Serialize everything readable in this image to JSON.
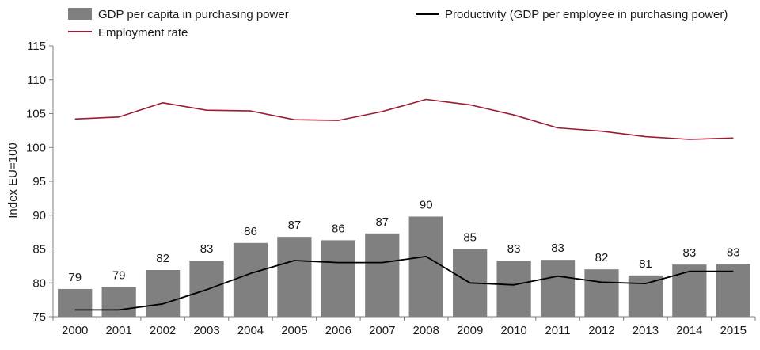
{
  "chart_data": {
    "type": "bar",
    "title": "",
    "xlabel": "",
    "ylabel": "Index EU=100",
    "ylim": [
      75,
      115
    ],
    "yticks": [
      75,
      80,
      85,
      90,
      95,
      100,
      105,
      110,
      115
    ],
    "grid": false,
    "legend_position": "top",
    "categories": [
      "2000",
      "2001",
      "2002",
      "2003",
      "2004",
      "2005",
      "2006",
      "2007",
      "2008",
      "2009",
      "2010",
      "2011",
      "2012",
      "2013",
      "2014",
      "2015"
    ],
    "series": [
      {
        "name": "GDP per capita in purchasing power",
        "type": "bar",
        "color": "#808080",
        "values": [
          79.1,
          79.4,
          81.9,
          83.3,
          85.9,
          86.8,
          86.3,
          87.3,
          89.8,
          85.0,
          83.3,
          83.4,
          82.0,
          81.1,
          82.7,
          82.8
        ],
        "labels": [
          "79",
          "79",
          "82",
          "83",
          "86",
          "87",
          "86",
          "87",
          "90",
          "85",
          "83",
          "83",
          "82",
          "81",
          "83",
          "83"
        ]
      },
      {
        "name": "Productivity (GDP per employee in purchasing power)",
        "type": "line",
        "color": "#000000",
        "values": [
          76.0,
          76.0,
          76.9,
          79.0,
          81.4,
          83.3,
          83.0,
          83.0,
          83.9,
          80.0,
          79.7,
          81.0,
          80.1,
          79.9,
          81.7,
          81.7
        ]
      },
      {
        "name": "Employment rate",
        "type": "line",
        "color": "#9a1b33",
        "values": [
          104.2,
          104.5,
          106.6,
          105.5,
          105.4,
          104.1,
          104.0,
          105.3,
          107.1,
          106.3,
          104.8,
          102.9,
          102.4,
          101.6,
          101.2,
          101.4
        ]
      }
    ]
  }
}
